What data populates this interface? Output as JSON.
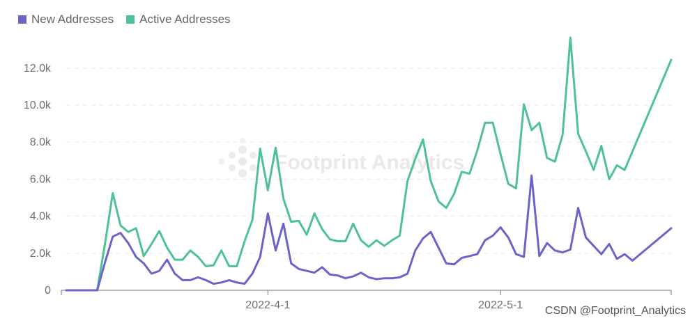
{
  "colors": {
    "new_addresses": "#6a64c8",
    "active_addresses": "#4fc197",
    "grid": "#e6e6e6",
    "axis": "#6e7079"
  },
  "watermark": {
    "text": "Footprint Analytics",
    "icon": "footprint-logo-icon"
  },
  "credit": "CSDN @Footprint_Analytics",
  "chart_data": {
    "type": "line",
    "title": "",
    "xlabel": "",
    "ylabel": "",
    "x_tick_labels": [
      {
        "label": "2022-4-1",
        "index": 26
      },
      {
        "label": "2022-5-1",
        "index": 56
      }
    ],
    "y_ticks": [
      0,
      2000,
      4000,
      6000,
      8000,
      10000,
      12000
    ],
    "y_tick_labels": [
      "0",
      "2.0k",
      "4.0k",
      "6.0k",
      "8.0k",
      "10.0k",
      "12.0k"
    ],
    "ylim": [
      0,
      13800
    ],
    "grid": true,
    "legend_position": "top-left",
    "series": [
      {
        "name": "New Addresses",
        "values": [
          0,
          0,
          0,
          0,
          0,
          1500,
          2900,
          3100,
          2550,
          1800,
          1450,
          900,
          1050,
          1650,
          900,
          550,
          550,
          700,
          550,
          350,
          420,
          550,
          420,
          350,
          900,
          1800,
          4150,
          2150,
          3600,
          1450,
          1150,
          1050,
          950,
          1250,
          850,
          800,
          650,
          750,
          950,
          700,
          600,
          650,
          650,
          700,
          900,
          2150,
          2800,
          3150,
          2300,
          1450,
          1400,
          1750,
          1850,
          1950,
          2700,
          2950,
          3400,
          2850,
          1950,
          1800,
          6200,
          1850,
          2550,
          2150,
          2050,
          2200,
          4450,
          2850,
          2400,
          1950,
          2500,
          1700,
          1950,
          1600,
          3350
        ],
        "x_index": [
          0,
          1,
          2,
          3,
          4,
          5,
          6,
          7,
          8,
          9,
          10,
          11,
          12,
          13,
          14,
          15,
          16,
          17,
          18,
          19,
          20,
          21,
          22,
          23,
          24,
          25,
          26,
          27,
          28,
          29,
          30,
          31,
          32,
          33,
          34,
          35,
          36,
          37,
          38,
          39,
          40,
          41,
          42,
          43,
          44,
          45,
          46,
          47,
          48,
          49,
          50,
          51,
          52,
          53,
          54,
          55,
          56,
          57,
          58,
          59,
          60,
          61,
          62,
          63,
          64,
          65,
          66,
          67,
          68,
          69,
          70,
          71,
          72,
          73,
          78
        ]
      },
      {
        "name": "Active Addresses",
        "values": [
          0,
          0,
          0,
          0,
          0,
          2500,
          5250,
          3500,
          3150,
          3350,
          1850,
          2500,
          3200,
          2300,
          1650,
          1650,
          2150,
          1800,
          1300,
          1350,
          2150,
          1300,
          1300,
          2650,
          3800,
          7650,
          5400,
          7700,
          4950,
          3700,
          3750,
          3000,
          4150,
          3300,
          2750,
          2650,
          2650,
          3600,
          2700,
          2350,
          2700,
          2400,
          2700,
          2950,
          5900,
          7100,
          8150,
          5900,
          4800,
          4450,
          5200,
          6400,
          6300,
          7550,
          9050,
          9050,
          7350,
          5750,
          5500,
          10050,
          8650,
          9050,
          7150,
          6950,
          8400,
          13650,
          8450,
          7500,
          6500,
          7800,
          6000,
          6750,
          6500,
          12450
        ],
        "x_index": [
          0,
          1,
          2,
          3,
          4,
          5,
          6,
          7,
          8,
          9,
          10,
          11,
          12,
          13,
          14,
          15,
          16,
          17,
          18,
          19,
          20,
          21,
          22,
          23,
          24,
          25,
          26,
          27,
          28,
          29,
          30,
          31,
          32,
          33,
          34,
          35,
          36,
          37,
          38,
          39,
          40,
          41,
          42,
          43,
          44,
          45,
          46,
          47,
          48,
          49,
          50,
          51,
          52,
          53,
          54,
          55,
          56,
          57,
          58,
          59,
          60,
          61,
          62,
          63,
          64,
          65,
          66,
          67,
          68,
          69,
          70,
          71,
          72,
          78
        ]
      }
    ]
  }
}
